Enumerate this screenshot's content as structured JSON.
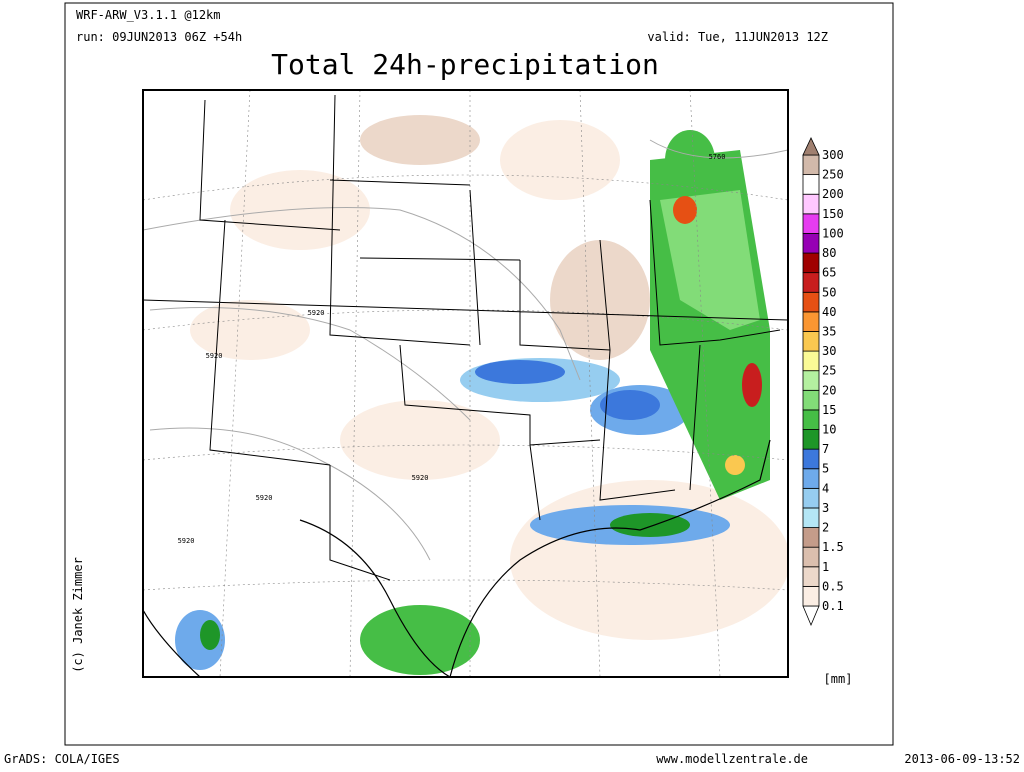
{
  "header": {
    "model": "WRF-ARW_V3.1.1 @12km",
    "run": "run: 09JUN2013 06Z +54h",
    "valid": "valid: Tue, 11JUN2013 12Z",
    "title": "Total 24h-precipitation"
  },
  "legend": {
    "levels": [
      0.1,
      0.5,
      1,
      1.5,
      2,
      3,
      4,
      5,
      7,
      10,
      15,
      20,
      25,
      30,
      35,
      40,
      50,
      65,
      80,
      100,
      150,
      200,
      250,
      300
    ],
    "colors": [
      "#ffffff",
      "#fbeee4",
      "#ecd8ca",
      "#dbbfae",
      "#c49c8a",
      "#b4e6f5",
      "#96cdf0",
      "#6eaaeb",
      "#3c78dc",
      "#1e9628",
      "#46be46",
      "#82dc78",
      "#b4f0a0",
      "#fafa96",
      "#fac850",
      "#fa9632",
      "#e65014",
      "#c81e1e",
      "#a00000",
      "#9600b4",
      "#e63cf0",
      "#ffc8ff",
      "#ffffff",
      "#d2b9aa",
      "#a08070"
    ],
    "unit": "[mm]"
  },
  "contour_labels": [
    "5760",
    "5920",
    "5920",
    "5920",
    "5920",
    "5920"
  ],
  "credit": "(c) Janek Zimmer",
  "footer": {
    "left": "GrADS: COLA/IGES",
    "center": "www.modellzentrale.de",
    "right": "2013-06-09-13:52"
  }
}
